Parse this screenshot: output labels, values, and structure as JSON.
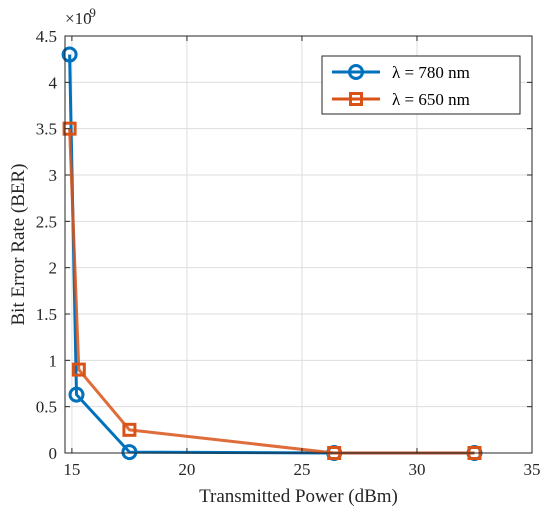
{
  "chart_data": {
    "type": "line",
    "xlabel": "Transmitted Power (dBm)",
    "ylabel": "Bit Error Rate (BER)",
    "y_exponent_label": "×10",
    "y_exponent_power": "-9",
    "xlim": [
      14.7,
      35
    ],
    "ylim": [
      0,
      4.5
    ],
    "xticks": [
      15,
      20,
      25,
      30,
      35
    ],
    "xtick_labels": [
      "15",
      "20",
      "25",
      "30",
      "35"
    ],
    "yticks": [
      0,
      0.5,
      1,
      1.5,
      2,
      2.5,
      3,
      3.5,
      4,
      4.5
    ],
    "ytick_labels": [
      "0",
      "0.5",
      "1",
      "1.5",
      "2",
      "2.5",
      "3",
      "3.5",
      "4",
      "4.5"
    ],
    "grid": true,
    "legend_position": "top-right",
    "series": [
      {
        "name": "λ = 780 nm",
        "color": "#0072BD",
        "marker": "circle",
        "x": [
          14.9,
          15.2,
          17.5,
          26.4,
          32.5
        ],
        "y": [
          4.3,
          0.63,
          0.01,
          0.0,
          0.0
        ]
      },
      {
        "name": "λ = 650 nm",
        "color": "#D95319",
        "marker": "square",
        "x": [
          14.9,
          15.3,
          17.5,
          26.4,
          32.5
        ],
        "y": [
          3.5,
          0.9,
          0.25,
          0.0,
          0.0
        ]
      }
    ]
  }
}
